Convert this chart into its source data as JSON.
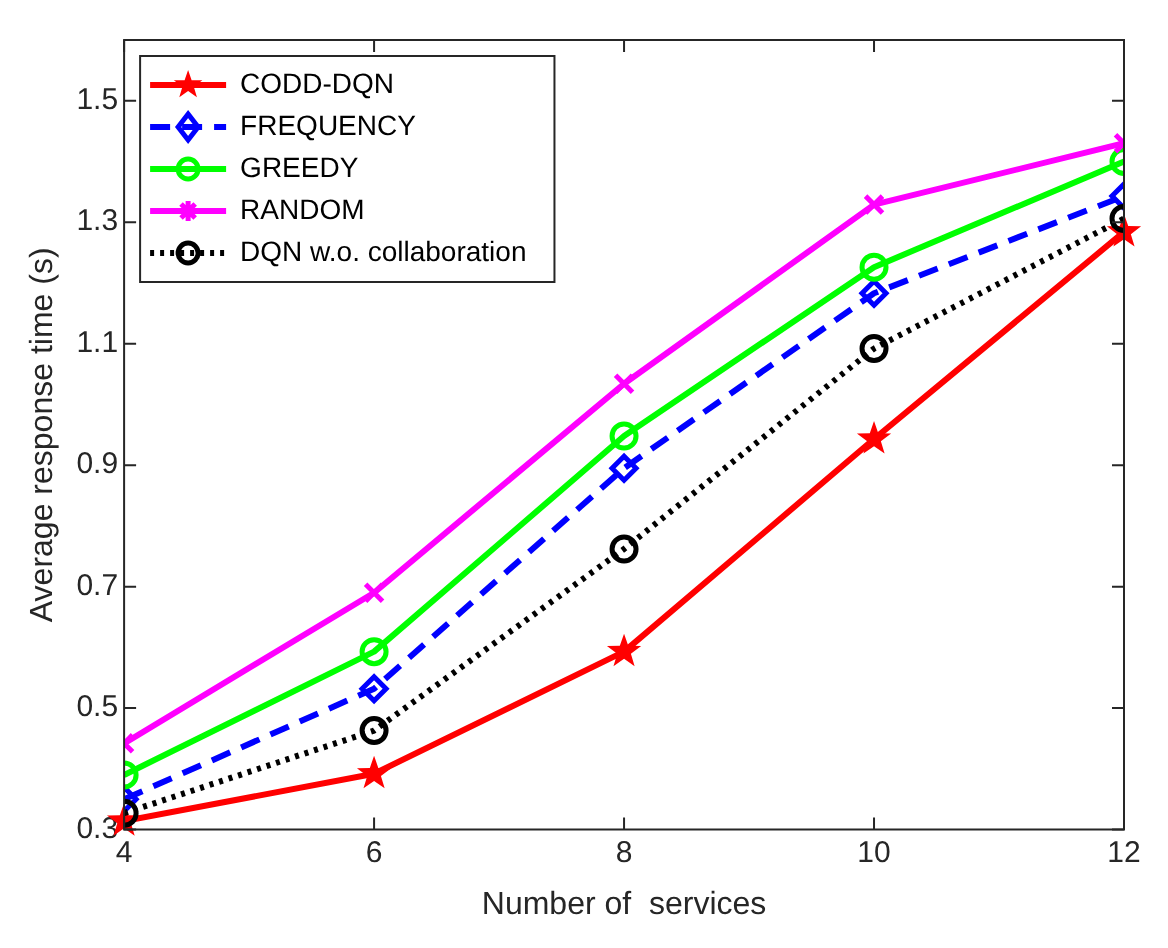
{
  "chart_data": {
    "type": "line",
    "xlabel": "Number of  services",
    "ylabel": "Average response time (s)",
    "x": [
      4,
      6,
      8,
      10,
      12
    ],
    "series": [
      {
        "name": "CODD-DQN",
        "color": "#ff0000",
        "marker": "star",
        "line_style": "solid",
        "values": [
          0.314,
          0.392,
          0.593,
          0.943,
          1.284
        ]
      },
      {
        "name": "FREQUENCY",
        "color": "#0000ff",
        "marker": "diamond",
        "line_style": "dashed",
        "values": [
          0.35,
          0.532,
          0.895,
          1.183,
          1.343
        ]
      },
      {
        "name": "GREEDY",
        "color": "#00ff00",
        "marker": "circle",
        "line_style": "solid",
        "values": [
          0.39,
          0.593,
          0.948,
          1.226,
          1.4
        ]
      },
      {
        "name": "RANDOM",
        "color": "#ff00ff",
        "marker": "cross",
        "line_style": "solid",
        "values": [
          0.442,
          0.69,
          1.034,
          1.329,
          1.43
        ]
      },
      {
        "name": "DQN w.o. collaboration",
        "color": "#000000",
        "marker": "circle",
        "line_style": "dotted",
        "values": [
          0.327,
          0.463,
          0.762,
          1.092,
          1.306
        ]
      }
    ],
    "xlim": [
      4,
      12
    ],
    "xticks": [
      4,
      6,
      8,
      10,
      12
    ],
    "ylim": [
      0.3,
      1.6
    ],
    "yticks": [
      0.3,
      0.5,
      0.7,
      0.9,
      1.1,
      1.3,
      1.5
    ],
    "grid": false,
    "legend": "top left"
  }
}
